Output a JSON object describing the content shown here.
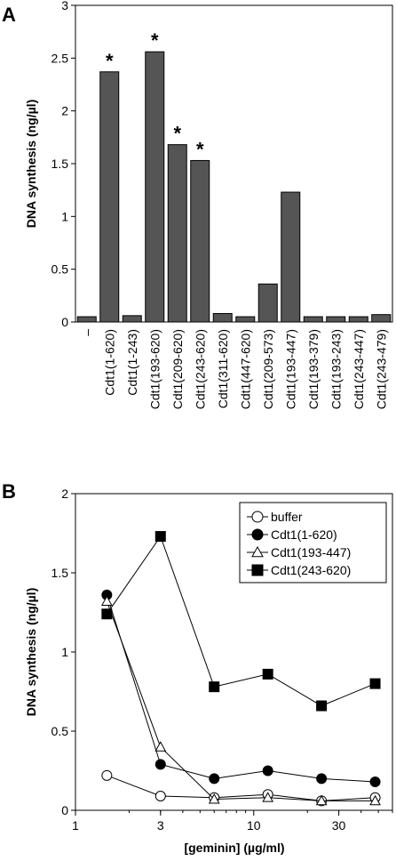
{
  "panels": {
    "a_label": "A",
    "b_label": "B"
  },
  "chart_data": [
    {
      "type": "bar",
      "ylabel": "DNA synthesis (ng/µl)",
      "ylim": [
        0,
        3
      ],
      "yticks": [
        "0",
        "0.5",
        "1",
        "1.5",
        "2",
        "2.5",
        "3"
      ],
      "ytick_values": [
        0,
        0.5,
        1,
        1.5,
        2,
        2.5,
        3
      ],
      "categories": [
        "–",
        "Cdt1(1-620)",
        "Cdt1(1-243)",
        "Cdt1(193-620)",
        "Cdt1(209-620)",
        "Cdt1(243-620)",
        "Cdt1(311-620)",
        "Cdt1(447-620)",
        "Cdt1(209-573)",
        "Cdt1(193-447)",
        "Cdt1(193-379)",
        "Cdt1(193-243)",
        "Cdt1(243-447)",
        "Cdt1(243-479)"
      ],
      "values": [
        0.05,
        2.37,
        0.06,
        2.56,
        1.68,
        1.53,
        0.08,
        0.05,
        0.36,
        1.23,
        0.05,
        0.05,
        0.05,
        0.07
      ],
      "significant": [
        false,
        true,
        false,
        true,
        true,
        true,
        false,
        false,
        false,
        false,
        false,
        false,
        false,
        false
      ],
      "significance_marker": "*",
      "bar_color": "#555555"
    },
    {
      "type": "line",
      "ylabel": "DNA synthesis (ng/µl)",
      "xlabel": "[geminin] (µg/ml)",
      "xscale": "log",
      "xlim": [
        1,
        60
      ],
      "ylim": [
        0,
        2
      ],
      "xticks": [
        "1",
        "3",
        "10",
        "30"
      ],
      "xtick_values": [
        1,
        3,
        10,
        30
      ],
      "yticks": [
        "0",
        "0.5",
        "1",
        "1.5",
        "2"
      ],
      "ytick_values": [
        0,
        0.5,
        1,
        1.5,
        2
      ],
      "x": [
        1.5,
        3,
        6,
        12,
        24,
        48
      ],
      "legend_position": "top-right",
      "series": [
        {
          "name": "buffer",
          "marker": "open-circle",
          "values": [
            0.22,
            0.09,
            0.08,
            0.1,
            0.06,
            0.08
          ]
        },
        {
          "name": "Cdt1(1-620)",
          "marker": "filled-circle",
          "values": [
            1.36,
            0.29,
            0.2,
            0.25,
            0.2,
            0.18
          ]
        },
        {
          "name": "Cdt1(193-447)",
          "marker": "open-triangle",
          "values": [
            1.32,
            0.4,
            0.07,
            0.08,
            0.06,
            0.06
          ]
        },
        {
          "name": "Cdt1(243-620)",
          "marker": "filled-square",
          "values": [
            1.24,
            1.73,
            0.78,
            0.86,
            0.66,
            0.8
          ]
        }
      ]
    }
  ]
}
